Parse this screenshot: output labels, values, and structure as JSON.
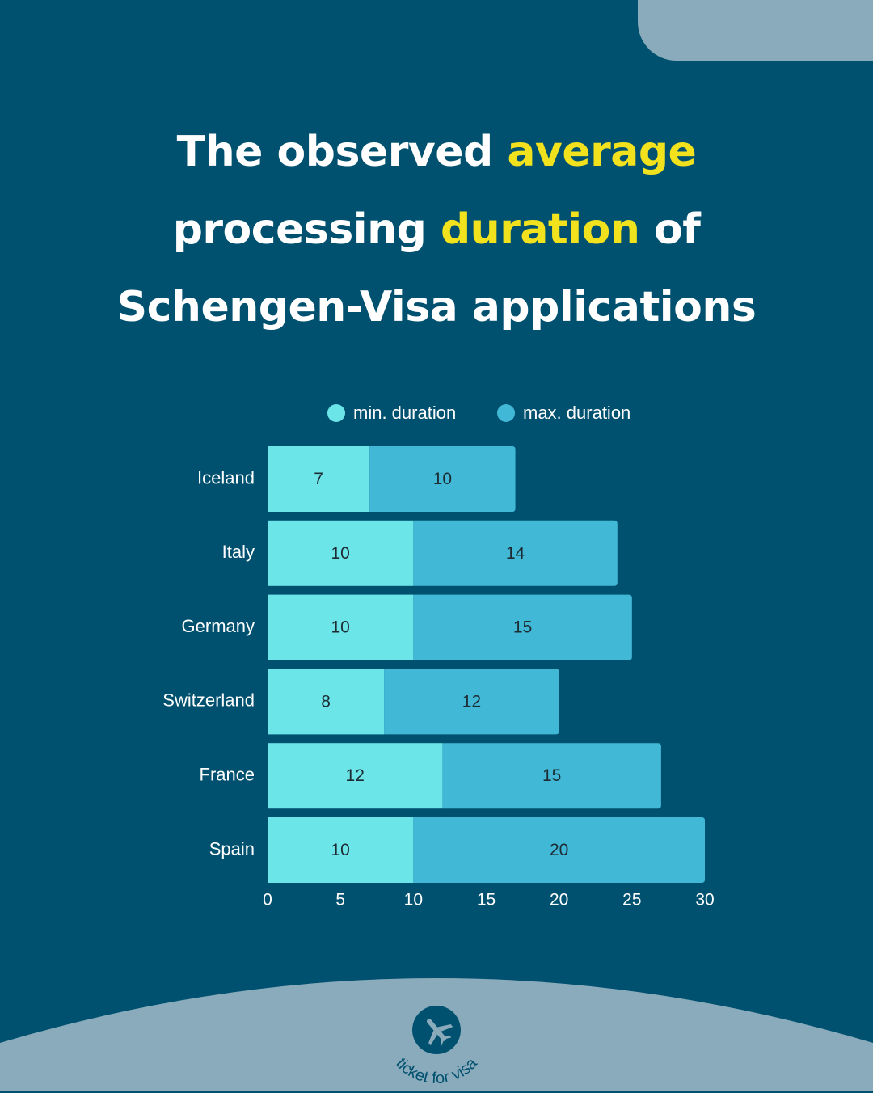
{
  "title": {
    "line1_pre": "The observed ",
    "line1_hl": "average",
    "line2_pre": "processing ",
    "line2_hl": "duration",
    "line2_post": " of",
    "line3": "Schengen-Visa applications"
  },
  "colors": {
    "background": "#00516f",
    "highlight": "#f2e21d",
    "min_bar": "#6be5e8",
    "max_bar": "#41b8d6",
    "accent_shape": "#8aabbb"
  },
  "legend": {
    "min_label": "min. duration",
    "max_label": "max. duration"
  },
  "chart_data": {
    "type": "bar",
    "orientation": "horizontal",
    "stacked": true,
    "categories": [
      "Iceland",
      "Italy",
      "Germany",
      "Switzerland",
      "France",
      "Spain"
    ],
    "series": [
      {
        "name": "min. duration",
        "values": [
          7,
          10,
          10,
          8,
          12,
          10
        ]
      },
      {
        "name": "max. duration",
        "values": [
          10,
          14,
          15,
          12,
          15,
          20
        ]
      }
    ],
    "xlim": [
      0,
      30
    ],
    "xticks": [
      0,
      5,
      10,
      15,
      20,
      25,
      30
    ],
    "grid": false,
    "legend_position": "top"
  },
  "logo": {
    "text": "ticket for visa",
    "icon": "airplane-icon"
  }
}
